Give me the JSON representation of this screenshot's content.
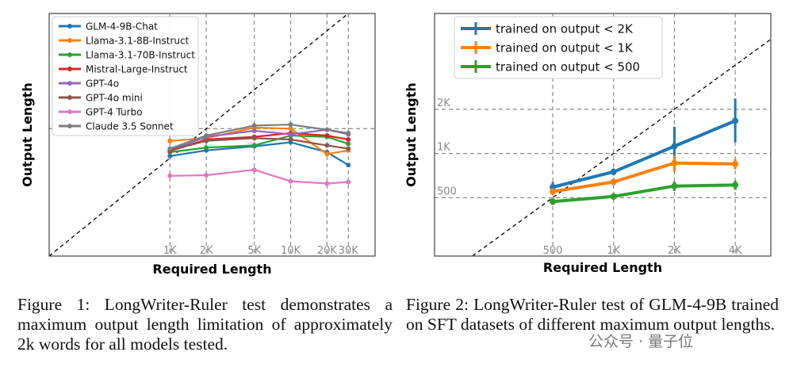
{
  "chart_data": [
    {
      "type": "line",
      "xlabel": "Required Length",
      "ylabel": "Output Length",
      "scale": "log-log",
      "x_ticks": [
        "1K",
        "2K",
        "5K",
        "10K",
        "20K",
        "30K"
      ],
      "x_tick_values": [
        1000,
        2000,
        5000,
        10000,
        20000,
        30000
      ],
      "y_ticks": [
        "2K"
      ],
      "y_tick_values": [
        2000
      ],
      "xlim": [
        100,
        50000
      ],
      "ylim": [
        100,
        30000
      ],
      "grid": "dashed at ticks",
      "diagonal_reference": true,
      "legend_placement": "top-left",
      "x": [
        1000,
        2000,
        5000,
        10000,
        20000,
        30000
      ],
      "series": [
        {
          "name": "GLM-4-9B-Chat",
          "color": "#1f77b4",
          "values": [
            1050,
            1200,
            1320,
            1450,
            1150,
            850
          ]
        },
        {
          "name": "Llama-3.1-8B-Instruct",
          "color": "#ff7f0e",
          "values": [
            1500,
            1600,
            2050,
            2000,
            1100,
            1200
          ]
        },
        {
          "name": "Llama-3.1-70B-Instruct",
          "color": "#2ca02c",
          "values": [
            1150,
            1280,
            1350,
            1700,
            1650,
            1400
          ]
        },
        {
          "name": "Mistral-Large-Instruct",
          "color": "#d62728",
          "values": [
            1180,
            1550,
            1650,
            1800,
            1700,
            1550
          ]
        },
        {
          "name": "GPT-4o",
          "color": "#9467bd",
          "values": [
            1200,
            1650,
            1900,
            1750,
            1950,
            1750
          ]
        },
        {
          "name": "GPT-4o mini",
          "color": "#8c564b",
          "values": [
            1200,
            1500,
            1600,
            1550,
            1350,
            1250
          ]
        },
        {
          "name": "GPT-4 Turbo",
          "color": "#e377c2",
          "values": [
            660,
            670,
            760,
            580,
            550,
            570
          ]
        },
        {
          "name": "Claude 3.5 Sonnet",
          "color": "#7f7f7f",
          "values": [
            1250,
            1700,
            2150,
            2200,
            1950,
            1800
          ]
        }
      ]
    },
    {
      "type": "line",
      "xlabel": "Required Length",
      "ylabel": "Output Length",
      "scale": "log-log",
      "x_ticks": [
        "500",
        "1K",
        "2K",
        "4K"
      ],
      "x_tick_values": [
        500,
        1000,
        2000,
        4000
      ],
      "y_ticks": [
        "500",
        "1K",
        "2K"
      ],
      "y_tick_values": [
        500,
        1000,
        2000
      ],
      "xlim": [
        130,
        6000
      ],
      "ylim": [
        200,
        9000
      ],
      "grid": "dashed at ticks",
      "diagonal_reference": true,
      "legend_placement": "top-left",
      "error_bars": true,
      "x": [
        500,
        1000,
        2000,
        4000
      ],
      "series": [
        {
          "name": "trained on output < 2K",
          "color": "#1f77b4",
          "values": [
            590,
            750,
            1120,
            1670
          ],
          "err_low": [
            50,
            40,
            350,
            480
          ],
          "err_high": [
            50,
            40,
            400,
            700
          ]
        },
        {
          "name": "trained on output < 1K",
          "color": "#ff7f0e",
          "values": [
            550,
            640,
            860,
            850
          ],
          "err_low": [
            30,
            30,
            110,
            70
          ],
          "err_high": [
            30,
            30,
            110,
            70
          ]
        },
        {
          "name": "trained on output < 500",
          "color": "#2ca02c",
          "values": [
            470,
            510,
            600,
            610
          ],
          "err_low": [
            25,
            25,
            45,
            45
          ],
          "err_high": [
            25,
            25,
            45,
            45
          ]
        }
      ]
    }
  ],
  "captions": {
    "fig1": "Figure 1: LongWriter-Ruler test demonstrates a maximum output length limitation of approximately 2k words for all models tested.",
    "fig2": "Figure 2: LongWriter-Ruler test of GLM-4-9B trained on SFT datasets of different maximum output lengths."
  },
  "watermark": "公众号 · 量子位"
}
